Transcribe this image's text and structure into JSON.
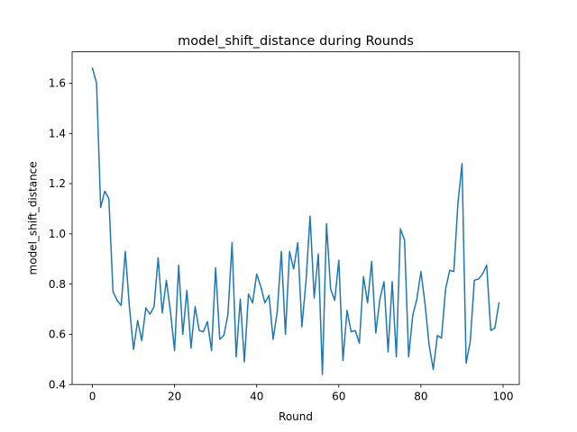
{
  "chart_data": {
    "type": "line",
    "title": "model_shift_distance during Rounds",
    "xlabel": "Round",
    "ylabel": "model_shift_distance",
    "xlim": [
      -4.95,
      103.95
    ],
    "ylim": [
      0.4,
      1.725
    ],
    "xticks": [
      0,
      20,
      40,
      60,
      80,
      100
    ],
    "yticks": [
      0.4,
      0.6,
      0.8,
      1.0,
      1.2,
      1.4,
      1.6
    ],
    "ytick_labels": [
      "0.4",
      "0.6",
      "0.8",
      "1.0",
      "1.2",
      "1.4",
      "1.6"
    ],
    "grid": false,
    "series": [
      {
        "color": "#1f77b4",
        "x": [
          0,
          1,
          2,
          3,
          4,
          5,
          6,
          7,
          8,
          9,
          10,
          11,
          12,
          13,
          14,
          15,
          16,
          17,
          18,
          19,
          20,
          21,
          22,
          23,
          24,
          25,
          26,
          27,
          28,
          29,
          30,
          31,
          32,
          33,
          34,
          35,
          36,
          37,
          38,
          39,
          40,
          41,
          42,
          43,
          44,
          45,
          46,
          47,
          48,
          49,
          50,
          51,
          52,
          53,
          54,
          55,
          56,
          57,
          58,
          59,
          60,
          61,
          62,
          63,
          64,
          65,
          66,
          67,
          68,
          69,
          70,
          71,
          72,
          73,
          74,
          75,
          76,
          77,
          78,
          79,
          80,
          81,
          82,
          83,
          84,
          85,
          86,
          87,
          88,
          89,
          90,
          91,
          92,
          93,
          94,
          95,
          96,
          97,
          98,
          99
        ],
        "values": [
          1.66,
          1.6,
          1.105,
          1.17,
          1.14,
          0.77,
          0.735,
          0.715,
          0.93,
          0.71,
          0.54,
          0.655,
          0.575,
          0.705,
          0.68,
          0.71,
          0.905,
          0.685,
          0.815,
          0.69,
          0.535,
          0.875,
          0.6,
          0.775,
          0.545,
          0.71,
          0.615,
          0.61,
          0.65,
          0.535,
          0.865,
          0.58,
          0.595,
          0.68,
          0.965,
          0.51,
          0.74,
          0.49,
          0.76,
          0.725,
          0.84,
          0.79,
          0.725,
          0.755,
          0.58,
          0.69,
          0.93,
          0.6,
          0.93,
          0.86,
          0.965,
          0.63,
          0.81,
          1.07,
          0.745,
          0.92,
          0.44,
          1.04,
          0.78,
          0.735,
          0.895,
          0.495,
          0.695,
          0.61,
          0.615,
          0.565,
          0.83,
          0.725,
          0.89,
          0.605,
          0.74,
          0.81,
          0.53,
          0.81,
          0.51,
          1.02,
          0.975,
          0.51,
          0.675,
          0.74,
          0.85,
          0.72,
          0.555,
          0.46,
          0.595,
          0.585,
          0.78,
          0.855,
          0.85,
          1.12,
          1.28,
          0.485,
          0.57,
          0.815,
          0.82,
          0.84,
          0.875,
          0.615,
          0.625,
          0.725
        ]
      }
    ]
  }
}
